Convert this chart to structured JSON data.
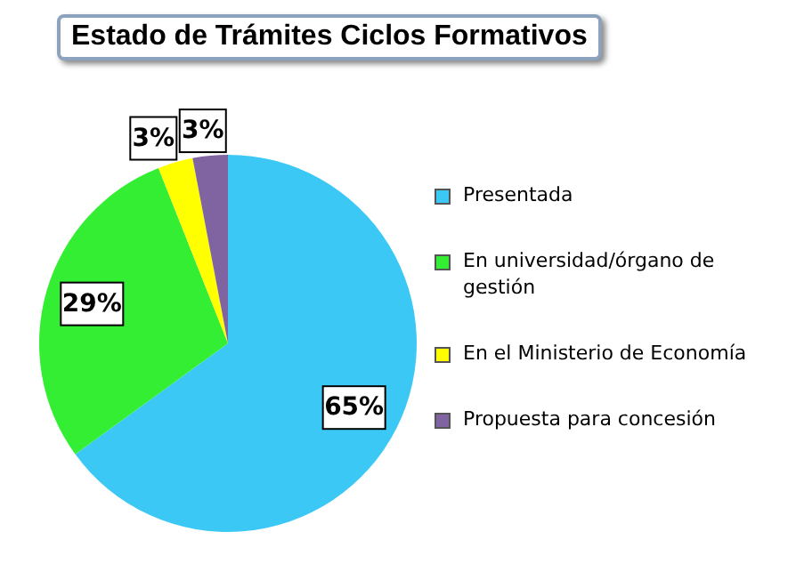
{
  "chart_data": {
    "type": "pie",
    "title": "Estado de Trámites Ciclos Formativos",
    "categories": [
      "Presentada",
      "En universidad/órgano de gestión",
      "En el Ministerio de Economía",
      "Propuesta para concesión"
    ],
    "values": [
      65,
      29,
      3,
      3
    ],
    "colors": [
      "#3cc8f4",
      "#33ee33",
      "#ffff00",
      "#8064a2"
    ],
    "value_labels": [
      "65%",
      "29%",
      "3%",
      "3%"
    ],
    "legend": "right"
  }
}
